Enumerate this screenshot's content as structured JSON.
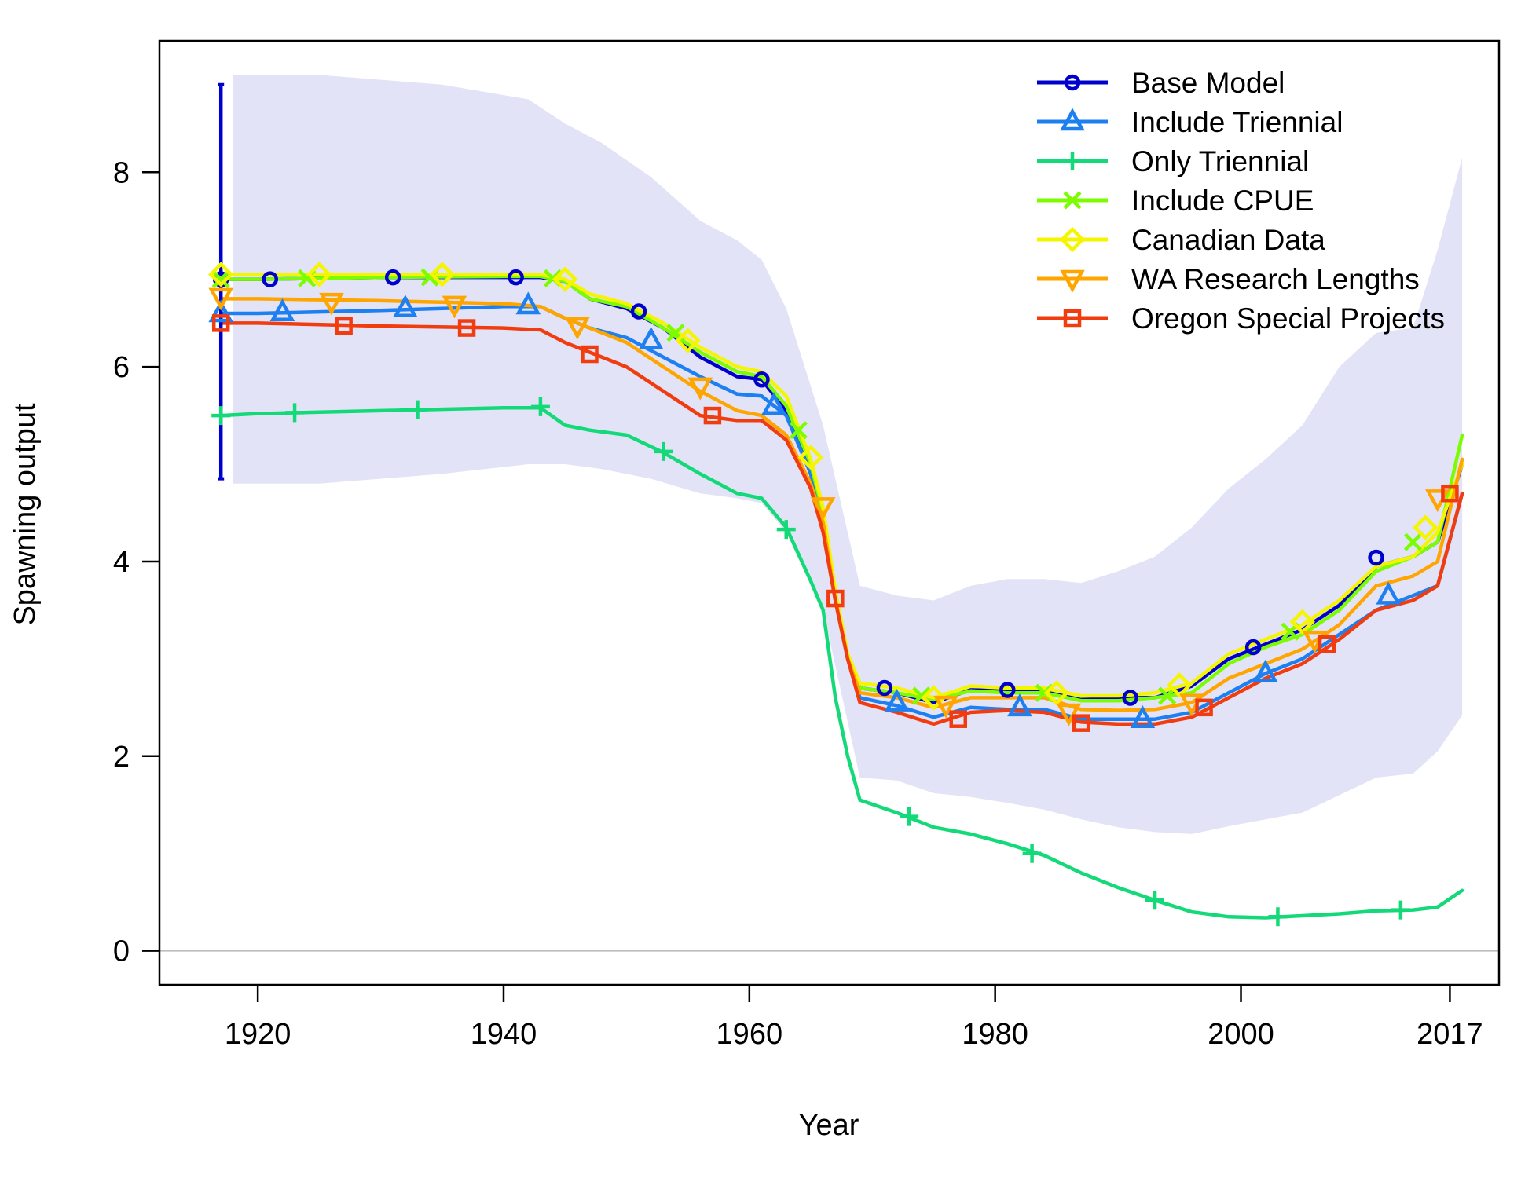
{
  "chart_data": {
    "type": "line",
    "title": "",
    "xlabel": "Year",
    "ylabel": "Spawning output",
    "xlim": [
      1912,
      2021
    ],
    "ylim": [
      -0.35,
      9.35
    ],
    "x_ticks": [
      1920,
      1940,
      1960,
      1980,
      2000,
      2017
    ],
    "x_tick_labels": [
      "1920",
      "1940",
      "1960",
      "1980",
      "2000",
      "2017"
    ],
    "y_ticks": [
      0,
      2,
      4,
      6,
      8
    ],
    "y_tick_labels": [
      "0",
      "2",
      "4",
      "6",
      "8"
    ],
    "grid": false,
    "legend_position": "top-right",
    "uncertainty_band": {
      "color": "#e3e3f7",
      "x": [
        1918,
        1925,
        1935,
        1942,
        1945,
        1948,
        1952,
        1956,
        1959,
        1961,
        1963,
        1966,
        1969,
        1972,
        1975,
        1978,
        1981,
        1984,
        1987,
        1990,
        1993,
        1996,
        1999,
        2002,
        2005,
        2008,
        2011,
        2014,
        2016,
        2018
      ],
      "upper": [
        9.0,
        9.0,
        8.9,
        8.75,
        8.5,
        8.3,
        7.95,
        7.5,
        7.3,
        7.1,
        6.6,
        5.4,
        3.75,
        3.65,
        3.6,
        3.75,
        3.82,
        3.82,
        3.78,
        3.9,
        4.05,
        4.35,
        4.75,
        5.05,
        5.4,
        6.0,
        6.35,
        6.4,
        7.2,
        8.15
      ],
      "lower": [
        4.8,
        4.8,
        4.9,
        5.0,
        5.0,
        4.95,
        4.85,
        4.7,
        4.65,
        4.6,
        4.3,
        3.5,
        1.78,
        1.75,
        1.62,
        1.58,
        1.52,
        1.45,
        1.35,
        1.27,
        1.22,
        1.2,
        1.28,
        1.35,
        1.42,
        1.6,
        1.78,
        1.82,
        2.05,
        2.42
      ]
    },
    "base_error_bar": {
      "x": 1917,
      "low": 4.85,
      "high": 8.9,
      "color": "#0000cd"
    },
    "zero_line": {
      "y": 0,
      "color": "#bdbdbd"
    },
    "series": [
      {
        "name": "Base Model",
        "color": "#0000cd",
        "marker": "circle",
        "x": [
          1917,
          1920,
          1930,
          1940,
          1943,
          1945,
          1947,
          1950,
          1953,
          1956,
          1959,
          1961,
          1963,
          1965,
          1966,
          1967,
          1968,
          1969,
          1972,
          1975,
          1978,
          1981,
          1984,
          1987,
          1990,
          1993,
          1996,
          1999,
          2002,
          2005,
          2008,
          2011,
          2014,
          2016,
          2018
        ],
        "y": [
          6.9,
          6.9,
          6.92,
          6.92,
          6.92,
          6.88,
          6.7,
          6.6,
          6.4,
          6.1,
          5.9,
          5.87,
          5.55,
          4.9,
          4.4,
          3.6,
          3.0,
          2.7,
          2.65,
          2.55,
          2.68,
          2.68,
          2.66,
          2.58,
          2.6,
          2.6,
          2.72,
          3.0,
          3.15,
          3.3,
          3.55,
          3.95,
          4.05,
          4.2,
          5.0
        ],
        "marker_x": [
          1917,
          1921,
          1931,
          1941,
          1951,
          1961,
          1971,
          1981,
          1991,
          2001,
          2011
        ],
        "marker_y": [
          6.9,
          6.9,
          6.92,
          6.92,
          6.57,
          5.87,
          2.7,
          2.68,
          2.6,
          3.12,
          4.04
        ]
      },
      {
        "name": "Include Triennial",
        "color": "#1e7ff0",
        "marker": "triangle-up",
        "x": [
          1917,
          1920,
          1930,
          1940,
          1943,
          1945,
          1947,
          1950,
          1953,
          1956,
          1959,
          1961,
          1963,
          1965,
          1966,
          1967,
          1968,
          1969,
          1972,
          1975,
          1978,
          1981,
          1984,
          1987,
          1990,
          1993,
          1996,
          1999,
          2002,
          2005,
          2008,
          2011,
          2014,
          2016,
          2018
        ],
        "y": [
          6.55,
          6.55,
          6.58,
          6.62,
          6.62,
          6.5,
          6.4,
          6.3,
          6.1,
          5.9,
          5.72,
          5.7,
          5.5,
          4.9,
          4.45,
          3.6,
          3.0,
          2.6,
          2.52,
          2.4,
          2.5,
          2.48,
          2.48,
          2.38,
          2.38,
          2.38,
          2.45,
          2.65,
          2.85,
          3.0,
          3.25,
          3.5,
          3.65,
          3.75,
          4.7
        ],
        "marker_x": [
          1917,
          1922,
          1932,
          1942,
          1952,
          1962,
          1972,
          1982,
          1992,
          2002,
          2012
        ],
        "marker_y": [
          6.55,
          6.56,
          6.6,
          6.63,
          6.27,
          5.6,
          2.55,
          2.5,
          2.38,
          2.85,
          3.65
        ]
      },
      {
        "name": "Only Triennial",
        "color": "#14d978",
        "marker": "plus",
        "x": [
          1917,
          1920,
          1930,
          1940,
          1943,
          1945,
          1947,
          1950,
          1953,
          1956,
          1959,
          1961,
          1963,
          1965,
          1966,
          1967,
          1968,
          1969,
          1972,
          1975,
          1978,
          1981,
          1984,
          1987,
          1990,
          1993,
          1996,
          1999,
          2002,
          2005,
          2008,
          2011,
          2014,
          2016,
          2018
        ],
        "y": [
          5.5,
          5.52,
          5.55,
          5.58,
          5.58,
          5.4,
          5.35,
          5.3,
          5.12,
          4.9,
          4.7,
          4.65,
          4.35,
          3.8,
          3.5,
          2.6,
          2.0,
          1.55,
          1.42,
          1.27,
          1.2,
          1.1,
          0.98,
          0.8,
          0.65,
          0.52,
          0.4,
          0.35,
          0.34,
          0.36,
          0.38,
          0.41,
          0.42,
          0.45,
          0.62
        ],
        "marker_x": [
          1917,
          1923,
          1933,
          1943,
          1953,
          1963,
          1973,
          1983,
          1993,
          2003,
          2013
        ],
        "marker_y": [
          5.5,
          5.53,
          5.56,
          5.59,
          5.13,
          4.33,
          1.38,
          1.0,
          0.52,
          0.35,
          0.42
        ]
      },
      {
        "name": "Include CPUE",
        "color": "#7cfc00",
        "marker": "x",
        "x": [
          1917,
          1920,
          1930,
          1940,
          1943,
          1945,
          1947,
          1950,
          1953,
          1956,
          1959,
          1961,
          1963,
          1965,
          1966,
          1967,
          1968,
          1969,
          1972,
          1975,
          1978,
          1981,
          1984,
          1987,
          1990,
          1993,
          1996,
          1999,
          2002,
          2005,
          2008,
          2011,
          2014,
          2016,
          2018
        ],
        "y": [
          6.9,
          6.9,
          6.92,
          6.93,
          6.93,
          6.88,
          6.7,
          6.62,
          6.4,
          6.15,
          5.95,
          5.9,
          5.6,
          5.0,
          4.5,
          3.65,
          3.0,
          2.7,
          2.65,
          2.58,
          2.67,
          2.65,
          2.65,
          2.57,
          2.57,
          2.6,
          2.65,
          2.95,
          3.12,
          3.25,
          3.5,
          3.9,
          4.05,
          4.2,
          5.3
        ],
        "marker_x": [
          1917,
          1924,
          1934,
          1944,
          1954,
          1964,
          1974,
          1984,
          1994,
          2004,
          2014
        ],
        "marker_y": [
          6.9,
          6.91,
          6.92,
          6.91,
          6.35,
          5.35,
          2.62,
          2.65,
          2.62,
          3.28,
          4.2
        ]
      },
      {
        "name": "Canadian Data",
        "color": "#f5f500",
        "marker": "diamond",
        "x": [
          1917,
          1920,
          1930,
          1940,
          1943,
          1945,
          1947,
          1950,
          1953,
          1956,
          1959,
          1961,
          1963,
          1965,
          1966,
          1967,
          1968,
          1969,
          1972,
          1975,
          1978,
          1981,
          1984,
          1987,
          1990,
          1993,
          1996,
          1999,
          2002,
          2005,
          2008,
          2011,
          2014,
          2016,
          2018
        ],
        "y": [
          6.95,
          6.95,
          6.95,
          6.95,
          6.95,
          6.9,
          6.75,
          6.65,
          6.45,
          6.2,
          6.0,
          5.95,
          5.7,
          5.05,
          4.55,
          3.7,
          3.05,
          2.75,
          2.7,
          2.6,
          2.72,
          2.7,
          2.7,
          2.62,
          2.62,
          2.65,
          2.75,
          3.05,
          3.2,
          3.35,
          3.6,
          3.95,
          4.05,
          4.3,
          5.0
        ],
        "marker_x": [
          1917,
          1925,
          1935,
          1945,
          1955,
          1965,
          1975,
          1985,
          1995,
          2005,
          2015
        ],
        "marker_y": [
          6.95,
          6.95,
          6.95,
          6.9,
          6.27,
          5.07,
          2.6,
          2.65,
          2.73,
          3.38,
          4.35
        ]
      },
      {
        "name": "WA Research Lengths",
        "color": "#ffa500",
        "marker": "triangle-down",
        "x": [
          1917,
          1920,
          1930,
          1940,
          1943,
          1945,
          1947,
          1950,
          1953,
          1956,
          1959,
          1961,
          1963,
          1965,
          1966,
          1967,
          1968,
          1969,
          1972,
          1975,
          1978,
          1981,
          1984,
          1987,
          1990,
          1993,
          1996,
          1999,
          2002,
          2005,
          2008,
          2011,
          2014,
          2016,
          2018
        ],
        "y": [
          6.7,
          6.7,
          6.68,
          6.65,
          6.62,
          6.5,
          6.4,
          6.25,
          6.0,
          5.75,
          5.55,
          5.5,
          5.3,
          4.8,
          4.4,
          3.6,
          3.0,
          2.65,
          2.6,
          2.5,
          2.6,
          2.6,
          2.6,
          2.48,
          2.47,
          2.48,
          2.55,
          2.8,
          2.95,
          3.1,
          3.35,
          3.75,
          3.85,
          4.0,
          5.05
        ],
        "marker_x": [
          1917,
          1926,
          1936,
          1946,
          1956,
          1966,
          1976,
          1986,
          1996,
          2006,
          2016
        ],
        "marker_y": [
          6.72,
          6.67,
          6.64,
          6.42,
          5.8,
          4.57,
          2.53,
          2.45,
          2.55,
          3.2,
          4.65
        ]
      },
      {
        "name": "Oregon Special Projects",
        "color": "#f03c0f",
        "marker": "square",
        "x": [
          1917,
          1920,
          1930,
          1940,
          1943,
          1945,
          1947,
          1950,
          1953,
          1956,
          1959,
          1961,
          1963,
          1965,
          1966,
          1967,
          1968,
          1969,
          1972,
          1975,
          1978,
          1981,
          1984,
          1987,
          1990,
          1993,
          1996,
          1999,
          2002,
          2005,
          2008,
          2011,
          2014,
          2016,
          2018
        ],
        "y": [
          6.45,
          6.45,
          6.42,
          6.4,
          6.38,
          6.25,
          6.15,
          6.0,
          5.75,
          5.5,
          5.45,
          5.45,
          5.25,
          4.75,
          4.3,
          3.6,
          3.0,
          2.55,
          2.45,
          2.33,
          2.45,
          2.47,
          2.45,
          2.35,
          2.33,
          2.33,
          2.4,
          2.6,
          2.8,
          2.95,
          3.2,
          3.5,
          3.6,
          3.75,
          4.7
        ],
        "marker_x": [
          1917,
          1927,
          1937,
          1947,
          1957,
          1967,
          1977,
          1987,
          1997,
          2007,
          2017
        ],
        "marker_y": [
          6.45,
          6.42,
          6.4,
          6.13,
          5.5,
          3.62,
          2.38,
          2.34,
          2.5,
          3.15,
          4.7
        ]
      }
    ]
  }
}
